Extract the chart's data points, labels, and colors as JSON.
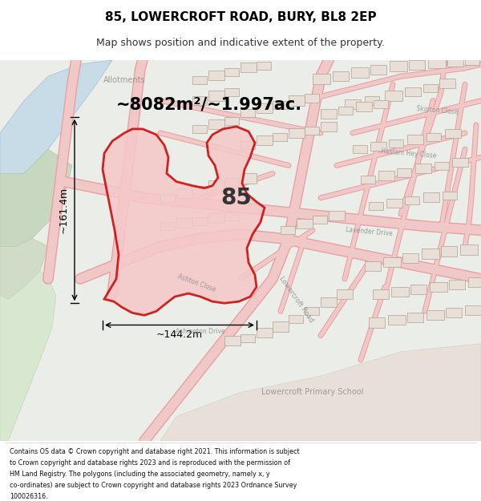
{
  "title": "85, LOWERCROFT ROAD, BURY, BL8 2EP",
  "subtitle": "Map shows position and indicative extent of the property.",
  "footer_lines": [
    "Contains OS data © Crown copyright and database right 2021. This information is subject",
    "to Crown copyright and database rights 2023 and is reproduced with the permission of",
    "HM Land Registry. The polygons (including the associated geometry, namely x, y",
    "co-ordinates) are subject to Crown copyright and database rights 2023 Ordnance Survey",
    "100026316."
  ],
  "area_text": "~8082m²/~1.997ac.",
  "label_85": "85",
  "dim_vertical": "~161.4m",
  "dim_horizontal": "~144.2m",
  "map_bg": "#eaede8",
  "road_color": "#f0c8c8",
  "road_stroke": "#e8a0a0",
  "property_fill": "#f5c8c8",
  "property_stroke": "#cc0000",
  "building_fill": "#e8e0d8",
  "building_stroke": "#c8b8a8",
  "water_color": "#c8dce8",
  "green_color": "#d8e8d0",
  "light_green": "#e0ece0"
}
